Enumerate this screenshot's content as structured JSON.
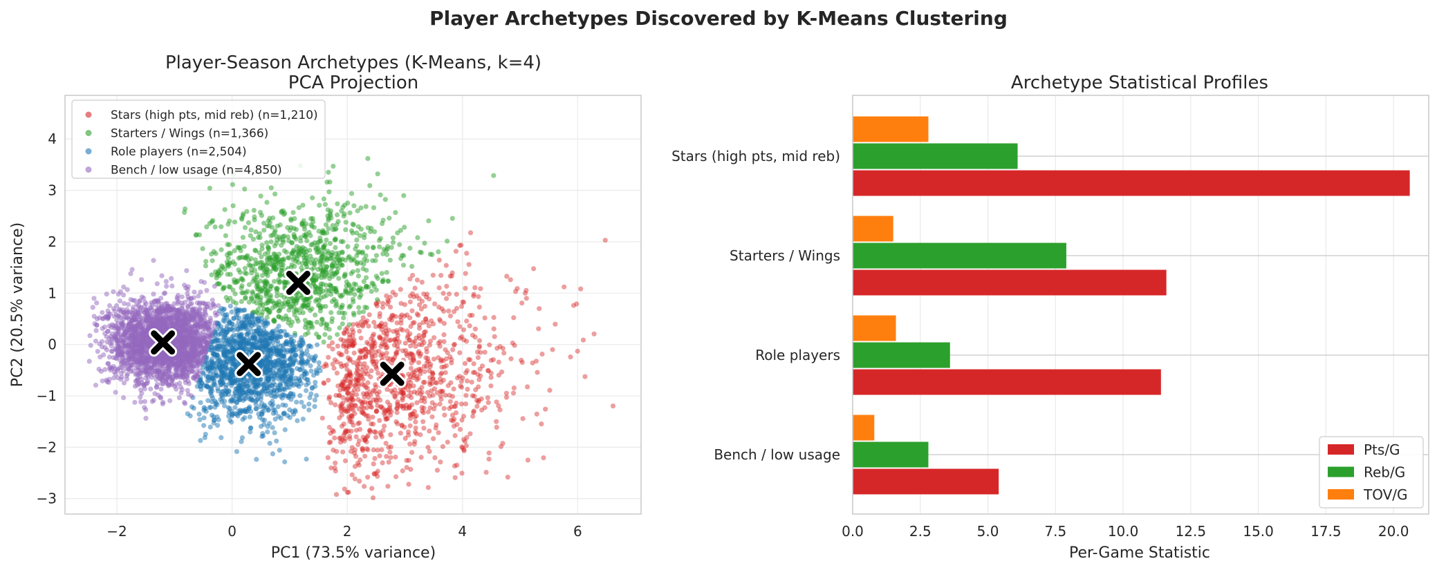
{
  "figure": {
    "title": "Player Archetypes Discovered by K-Means Clustering"
  },
  "chart_data": [
    {
      "type": "scatter",
      "title": "Player-Season Archetypes (K-Means, k=4)",
      "subtitle": "PCA Projection",
      "xlabel": "PC1 (73.5% variance)",
      "ylabel": "PC2 (20.5% variance)",
      "xlim": [
        -2.9,
        7.1
      ],
      "ylim": [
        -3.3,
        4.85
      ],
      "xticks": [
        -2,
        0,
        2,
        4,
        6
      ],
      "yticks": [
        -3,
        -2,
        -1,
        0,
        1,
        2,
        3,
        4
      ],
      "grid": true,
      "legend_position": "top-left",
      "series": [
        {
          "name": "Stars (high pts, mid reb) (n=1,210)",
          "color": "#d62728",
          "n": 1210,
          "centroid": [
            2.78,
            -0.57
          ]
        },
        {
          "name": "Starters / Wings (n=1,366)",
          "color": "#2ca02c",
          "n": 1366,
          "centroid": [
            1.15,
            1.2
          ]
        },
        {
          "name": "Role players (n=2,504)",
          "color": "#1f77b4",
          "n": 2504,
          "centroid": [
            0.29,
            -0.38
          ]
        },
        {
          "name": "Bench / low usage (n=4,850)",
          "color": "#9467bd",
          "n": 4850,
          "centroid": [
            -1.2,
            0.04
          ]
        }
      ],
      "centroid_marker": "X"
    },
    {
      "type": "bar",
      "orientation": "horizontal",
      "title": "Archetype Statistical Profiles",
      "xlabel": "Per-Game Statistic",
      "ylabel": "",
      "xlim": [
        0,
        21.3
      ],
      "xticks": [
        "0.0",
        "2.5",
        "5.0",
        "7.5",
        "10.0",
        "12.5",
        "15.0",
        "17.5",
        "20.0"
      ],
      "categories": [
        "Stars (high pts, mid reb)",
        "Starters / Wings",
        "Role players",
        "Bench / low usage"
      ],
      "series": [
        {
          "name": "Pts/G",
          "color": "#d62728",
          "values": [
            20.6,
            11.6,
            11.4,
            5.4
          ]
        },
        {
          "name": "Reb/G",
          "color": "#2ca02c",
          "values": [
            6.1,
            7.9,
            3.6,
            2.8
          ]
        },
        {
          "name": "TOV/G",
          "color": "#ff7f0e",
          "values": [
            2.8,
            1.5,
            1.6,
            0.8
          ]
        }
      ],
      "grid": true,
      "legend_position": "bottom-right"
    }
  ]
}
